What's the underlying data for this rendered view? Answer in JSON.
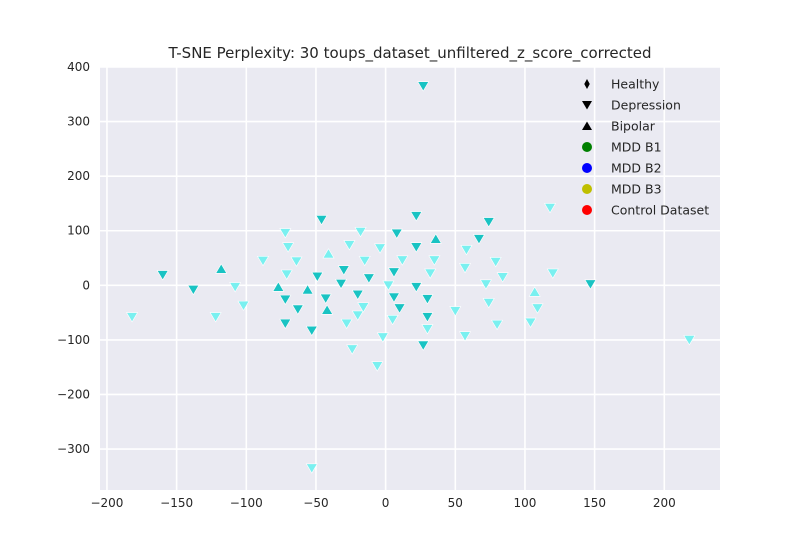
{
  "chart_data": {
    "type": "scatter",
    "title": "T-SNE Perplexity: 30 toups_dataset_unfiltered_z_score_corrected",
    "xlabel": "",
    "ylabel": "",
    "xlim": [
      -205,
      240
    ],
    "ylim": [
      -375,
      400
    ],
    "xticks": [
      -200,
      -150,
      -100,
      -50,
      0,
      50,
      100,
      150,
      200
    ],
    "yticks": [
      -300,
      -200,
      -100,
      0,
      100,
      200,
      300,
      400
    ],
    "xtick_labels": [
      "−200",
      "−150",
      "−100",
      "−50",
      "0",
      "50",
      "100",
      "150",
      "200"
    ],
    "ytick_labels": [
      "−300",
      "−200",
      "−100",
      "0",
      "100",
      "200",
      "300",
      "400"
    ],
    "grid": true,
    "background": "#eaeaf2",
    "legend_position": "upper-right",
    "legend": [
      {
        "label": "Healthy",
        "marker": "diamond",
        "color": "#000000"
      },
      {
        "label": "Depression",
        "marker": "triangle-down",
        "color": "#000000"
      },
      {
        "label": "Bipolar",
        "marker": "triangle-up",
        "color": "#000000"
      },
      {
        "label": "MDD B1",
        "marker": "circle",
        "color": "#008000"
      },
      {
        "label": "MDD B2",
        "marker": "circle",
        "color": "#0000ff"
      },
      {
        "label": "MDD B3",
        "marker": "circle",
        "color": "#bfbf00"
      },
      {
        "label": "Control Dataset",
        "marker": "circle",
        "color": "#ff0000"
      }
    ],
    "series": [
      {
        "color": "#19c3c3",
        "points": [
          {
            "x": 27,
            "y": 365,
            "m": "v"
          },
          {
            "x": -160,
            "y": 19,
            "m": "v"
          },
          {
            "x": -138,
            "y": -8,
            "m": "v"
          },
          {
            "x": -118,
            "y": 30,
            "m": "^"
          },
          {
            "x": -77,
            "y": -3,
            "m": "^"
          },
          {
            "x": -72,
            "y": -26,
            "m": "v"
          },
          {
            "x": -72,
            "y": -70,
            "m": "v"
          },
          {
            "x": -63,
            "y": -44,
            "m": "v"
          },
          {
            "x": -56,
            "y": -8,
            "m": "^"
          },
          {
            "x": -53,
            "y": -83,
            "m": "v"
          },
          {
            "x": -49,
            "y": 16,
            "m": "v"
          },
          {
            "x": -46,
            "y": 120,
            "m": "v"
          },
          {
            "x": -43,
            "y": -24,
            "m": "v"
          },
          {
            "x": -42,
            "y": -45,
            "m": "^"
          },
          {
            "x": -30,
            "y": 28,
            "m": "v"
          },
          {
            "x": -32,
            "y": 3,
            "m": "v"
          },
          {
            "x": -20,
            "y": -17,
            "m": "v"
          },
          {
            "x": -12,
            "y": 13,
            "m": "v"
          },
          {
            "x": 6,
            "y": -22,
            "m": "v"
          },
          {
            "x": 6,
            "y": 24,
            "m": "v"
          },
          {
            "x": 8,
            "y": 95,
            "m": "v"
          },
          {
            "x": 10,
            "y": -42,
            "m": "v"
          },
          {
            "x": 22,
            "y": 127,
            "m": "v"
          },
          {
            "x": 22,
            "y": 70,
            "m": "v"
          },
          {
            "x": 22,
            "y": -3,
            "m": "v"
          },
          {
            "x": 27,
            "y": -110,
            "m": "v"
          },
          {
            "x": 30,
            "y": -25,
            "m": "v"
          },
          {
            "x": 30,
            "y": -58,
            "m": "v"
          },
          {
            "x": 36,
            "y": 85,
            "m": "^"
          },
          {
            "x": 67,
            "y": 85,
            "m": "v"
          },
          {
            "x": 74,
            "y": 116,
            "m": "v"
          },
          {
            "x": 147,
            "y": 2,
            "m": "v"
          }
        ]
      },
      {
        "color": "#7af0f0",
        "points": [
          {
            "x": -182,
            "y": -58,
            "m": "v"
          },
          {
            "x": -122,
            "y": -58,
            "m": "v"
          },
          {
            "x": -108,
            "y": -3,
            "m": "v"
          },
          {
            "x": -102,
            "y": -37,
            "m": "v"
          },
          {
            "x": -88,
            "y": 45,
            "m": "v"
          },
          {
            "x": -72,
            "y": 96,
            "m": "v"
          },
          {
            "x": -70,
            "y": 70,
            "m": "v"
          },
          {
            "x": -71,
            "y": 20,
            "m": "v"
          },
          {
            "x": -64,
            "y": 44,
            "m": "v"
          },
          {
            "x": -53,
            "y": -335,
            "m": "v"
          },
          {
            "x": -41,
            "y": 58,
            "m": "^"
          },
          {
            "x": -26,
            "y": 74,
            "m": "v"
          },
          {
            "x": -18,
            "y": 98,
            "m": "v"
          },
          {
            "x": -15,
            "y": 45,
            "m": "v"
          },
          {
            "x": -28,
            "y": -70,
            "m": "v"
          },
          {
            "x": -24,
            "y": -117,
            "m": "v"
          },
          {
            "x": -20,
            "y": -55,
            "m": "v"
          },
          {
            "x": -16,
            "y": -40,
            "m": "v"
          },
          {
            "x": -6,
            "y": -148,
            "m": "v"
          },
          {
            "x": -4,
            "y": 68,
            "m": "v"
          },
          {
            "x": -2,
            "y": -95,
            "m": "v"
          },
          {
            "x": 2,
            "y": 0,
            "m": "v"
          },
          {
            "x": 5,
            "y": -63,
            "m": "v"
          },
          {
            "x": 12,
            "y": 46,
            "m": "v"
          },
          {
            "x": 30,
            "y": -80,
            "m": "v"
          },
          {
            "x": 32,
            "y": 22,
            "m": "v"
          },
          {
            "x": 35,
            "y": 46,
            "m": "v"
          },
          {
            "x": 50,
            "y": -47,
            "m": "v"
          },
          {
            "x": 57,
            "y": 32,
            "m": "v"
          },
          {
            "x": 57,
            "y": -93,
            "m": "v"
          },
          {
            "x": 58,
            "y": 65,
            "m": "v"
          },
          {
            "x": 72,
            "y": 2,
            "m": "v"
          },
          {
            "x": 74,
            "y": -32,
            "m": "v"
          },
          {
            "x": 79,
            "y": 43,
            "m": "v"
          },
          {
            "x": 80,
            "y": -72,
            "m": "v"
          },
          {
            "x": 84,
            "y": 15,
            "m": "v"
          },
          {
            "x": 104,
            "y": -68,
            "m": "v"
          },
          {
            "x": 107,
            "y": -12,
            "m": "^"
          },
          {
            "x": 109,
            "y": -42,
            "m": "v"
          },
          {
            "x": 118,
            "y": 142,
            "m": "v"
          },
          {
            "x": 120,
            "y": 22,
            "m": "v"
          },
          {
            "x": 218,
            "y": -100,
            "m": "v"
          }
        ]
      }
    ]
  }
}
